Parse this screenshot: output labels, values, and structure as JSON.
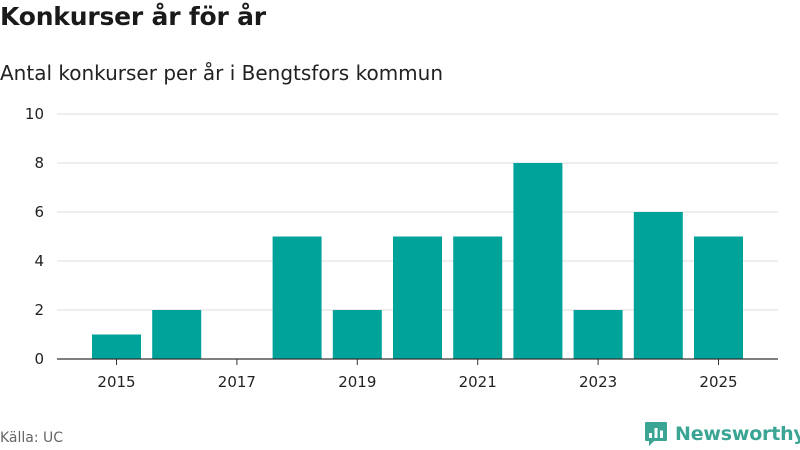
{
  "header": {
    "title": "Konkurser år för år",
    "subtitle": "Antal konkurser per år i Bengtsfors kommun"
  },
  "footer": {
    "source": "Källa: UC",
    "brand": "Newsworthy"
  },
  "colors": {
    "bar": "#00a39a",
    "grid": "#dddddd",
    "axis": "#333333",
    "brand": "#3aa594"
  },
  "icons": {
    "brand_logo": "bar-chart-badge-icon"
  },
  "chart_data": {
    "type": "bar",
    "title": "Konkurser år för år",
    "subtitle": "Antal konkurser per år i Bengtsfors kommun",
    "categories": [
      "2015",
      "2016",
      "2017",
      "2018",
      "2019",
      "2020",
      "2021",
      "2022",
      "2023",
      "2024",
      "2025"
    ],
    "values": [
      1,
      2,
      0,
      5,
      2,
      5,
      5,
      8,
      2,
      6,
      5
    ],
    "x_tick_labels": [
      "2015",
      "2017",
      "2019",
      "2021",
      "2023",
      "2025"
    ],
    "y_ticks": [
      0,
      2,
      4,
      6,
      8,
      10
    ],
    "ylim": [
      0,
      10
    ],
    "xlabel": "",
    "ylabel": "",
    "grid": true,
    "legend": "none"
  }
}
